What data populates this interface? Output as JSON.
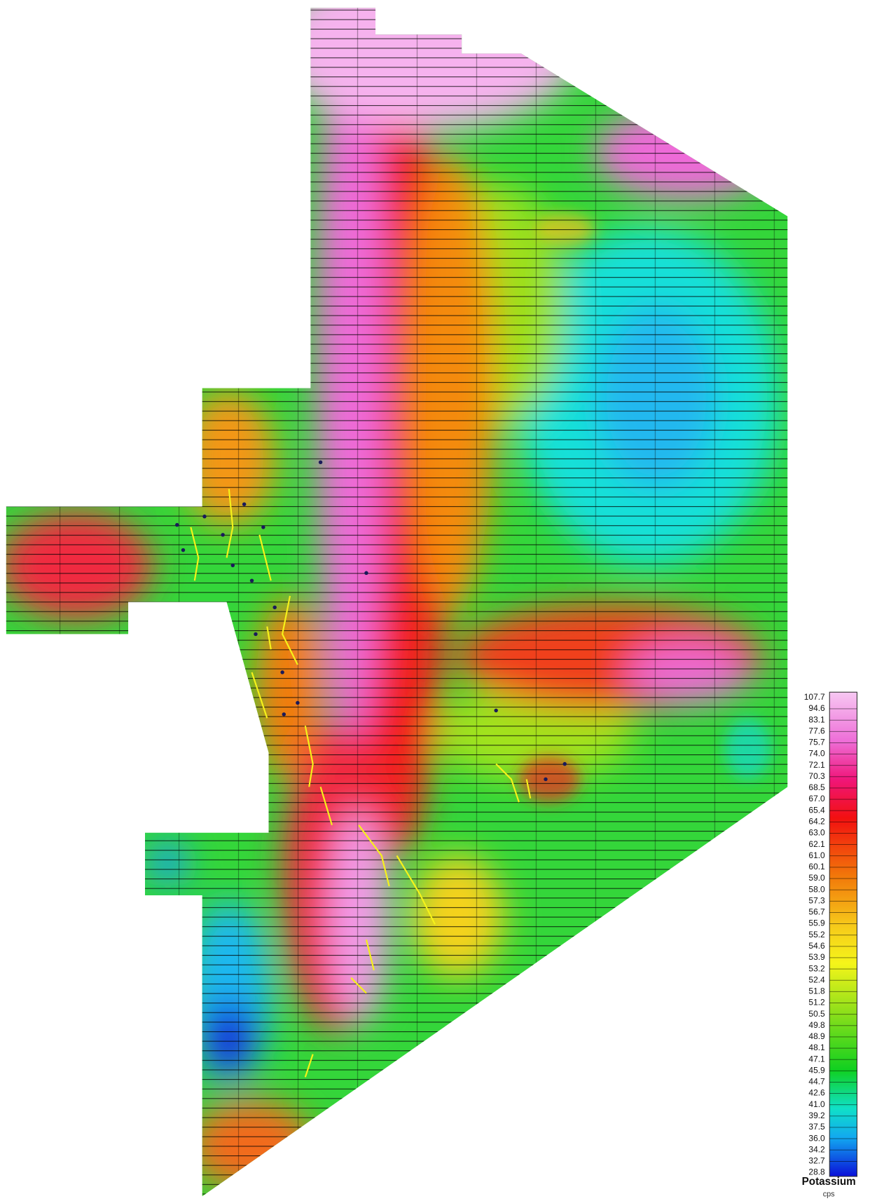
{
  "legend": {
    "title": "Potassium",
    "unit": "cps",
    "values": [
      "107.7",
      "94.6",
      "83.1",
      "77.6",
      "75.7",
      "74.0",
      "72.1",
      "70.3",
      "68.5",
      "67.0",
      "65.4",
      "64.2",
      "63.0",
      "62.1",
      "61.0",
      "60.1",
      "59.0",
      "58.0",
      "57.3",
      "56.7",
      "55.9",
      "55.2",
      "54.6",
      "53.9",
      "53.2",
      "52.4",
      "51.8",
      "51.2",
      "50.5",
      "49.8",
      "48.9",
      "48.1",
      "47.1",
      "45.9",
      "44.7",
      "42.6",
      "41.0",
      "39.2",
      "37.5",
      "36.0",
      "34.2",
      "32.7",
      "28.8"
    ]
  }
}
